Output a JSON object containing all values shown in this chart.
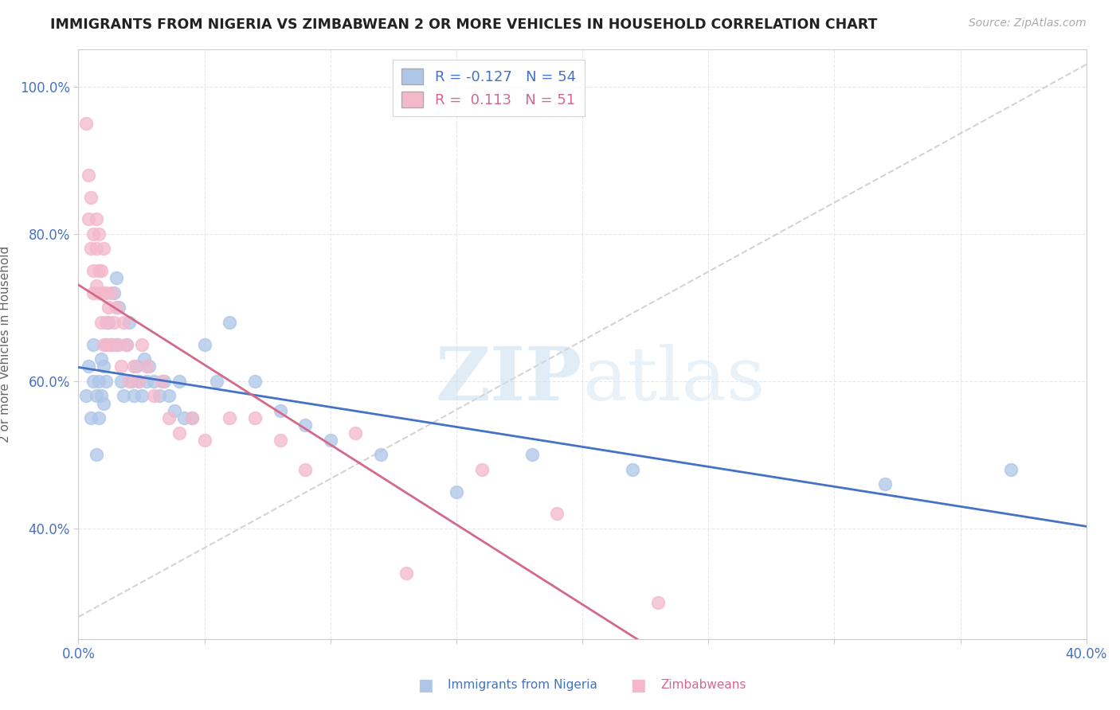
{
  "title": "IMMIGRANTS FROM NIGERIA VS ZIMBABWEAN 2 OR MORE VEHICLES IN HOUSEHOLD CORRELATION CHART",
  "source": "Source: ZipAtlas.com",
  "ylabel": "2 or more Vehicles in Household",
  "x_min": 0.0,
  "x_max": 0.4,
  "y_min": 0.25,
  "y_max": 1.05,
  "x_ticks": [
    0.0,
    0.05,
    0.1,
    0.15,
    0.2,
    0.25,
    0.3,
    0.35,
    0.4
  ],
  "y_ticks": [
    0.4,
    0.6,
    0.8,
    1.0
  ],
  "nigeria_R": -0.127,
  "nigeria_N": 54,
  "zimbabwe_R": 0.113,
  "zimbabwe_N": 51,
  "nigeria_color": "#aec6e8",
  "zimbabwe_color": "#f4b8cb",
  "nigeria_line_color": "#4472c4",
  "zimbabwe_line_color": "#d4698a",
  "trend_line_color": "#cccccc",
  "nigeria_scatter_x": [
    0.003,
    0.004,
    0.005,
    0.006,
    0.006,
    0.007,
    0.007,
    0.008,
    0.008,
    0.009,
    0.009,
    0.01,
    0.01,
    0.011,
    0.011,
    0.012,
    0.013,
    0.014,
    0.015,
    0.015,
    0.016,
    0.017,
    0.018,
    0.019,
    0.02,
    0.021,
    0.022,
    0.023,
    0.024,
    0.025,
    0.026,
    0.027,
    0.028,
    0.03,
    0.032,
    0.034,
    0.036,
    0.038,
    0.04,
    0.042,
    0.045,
    0.05,
    0.055,
    0.06,
    0.07,
    0.08,
    0.09,
    0.1,
    0.12,
    0.15,
    0.18,
    0.22,
    0.32,
    0.37
  ],
  "nigeria_scatter_y": [
    0.58,
    0.62,
    0.55,
    0.6,
    0.65,
    0.58,
    0.5,
    0.55,
    0.6,
    0.63,
    0.58,
    0.62,
    0.57,
    0.6,
    0.65,
    0.68,
    0.65,
    0.72,
    0.74,
    0.65,
    0.7,
    0.6,
    0.58,
    0.65,
    0.68,
    0.6,
    0.58,
    0.62,
    0.6,
    0.58,
    0.63,
    0.6,
    0.62,
    0.6,
    0.58,
    0.6,
    0.58,
    0.56,
    0.6,
    0.55,
    0.55,
    0.65,
    0.6,
    0.68,
    0.6,
    0.56,
    0.54,
    0.52,
    0.5,
    0.45,
    0.5,
    0.48,
    0.46,
    0.48
  ],
  "zimbabwe_scatter_x": [
    0.003,
    0.004,
    0.004,
    0.005,
    0.005,
    0.006,
    0.006,
    0.006,
    0.007,
    0.007,
    0.007,
    0.008,
    0.008,
    0.008,
    0.009,
    0.009,
    0.01,
    0.01,
    0.01,
    0.011,
    0.011,
    0.012,
    0.012,
    0.013,
    0.013,
    0.014,
    0.015,
    0.016,
    0.017,
    0.018,
    0.019,
    0.02,
    0.022,
    0.024,
    0.025,
    0.027,
    0.03,
    0.033,
    0.036,
    0.04,
    0.045,
    0.05,
    0.06,
    0.07,
    0.08,
    0.09,
    0.11,
    0.13,
    0.16,
    0.19,
    0.23
  ],
  "zimbabwe_scatter_y": [
    0.95,
    0.88,
    0.82,
    0.78,
    0.85,
    0.8,
    0.75,
    0.72,
    0.82,
    0.78,
    0.73,
    0.75,
    0.72,
    0.8,
    0.75,
    0.68,
    0.72,
    0.78,
    0.65,
    0.72,
    0.68,
    0.7,
    0.65,
    0.72,
    0.65,
    0.68,
    0.7,
    0.65,
    0.62,
    0.68,
    0.65,
    0.6,
    0.62,
    0.6,
    0.65,
    0.62,
    0.58,
    0.6,
    0.55,
    0.53,
    0.55,
    0.52,
    0.55,
    0.55,
    0.52,
    0.48,
    0.53,
    0.34,
    0.48,
    0.42,
    0.3
  ],
  "watermark_zip": "ZIP",
  "watermark_atlas": "atlas",
  "background_color": "#ffffff",
  "grid_color": "#e8e8e8"
}
